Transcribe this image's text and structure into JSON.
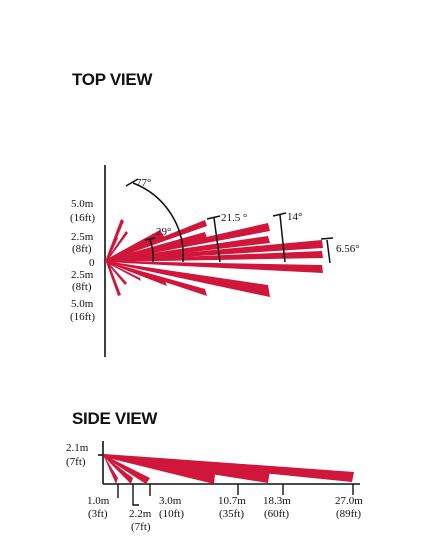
{
  "top_view": {
    "title": "TOP VIEW",
    "beam_color": "#d0163a",
    "y_labels": [
      {
        "value": "5.0m",
        "unit_alt": "(16ft)"
      },
      {
        "value": "2.5m",
        "unit_alt": "(8ft)"
      },
      {
        "value": "0",
        "unit_alt": ""
      },
      {
        "value": "2.5m",
        "unit_alt": "(8ft)"
      },
      {
        "value": "5.0m",
        "unit_alt": "(16ft)"
      }
    ],
    "angles": [
      "77°",
      "29°",
      "21.5 °",
      "14°",
      "6.56°"
    ]
  },
  "side_view": {
    "title": "SIDE VIEW",
    "beam_color": "#d0163a",
    "height_label": {
      "value": "2.1m",
      "unit_alt": "(7ft)"
    },
    "distances": [
      {
        "value": "1.0m",
        "unit_alt": "(3ft)"
      },
      {
        "value": "2.2m",
        "unit_alt": "(7ft)"
      },
      {
        "value": "3.0m",
        "unit_alt": "(10ft)"
      },
      {
        "value": "10.7m",
        "unit_alt": "(35ft)"
      },
      {
        "value": "18.3m",
        "unit_alt": "(60ft)"
      },
      {
        "value": "27.0m",
        "unit_alt": "(89ft)"
      }
    ]
  }
}
